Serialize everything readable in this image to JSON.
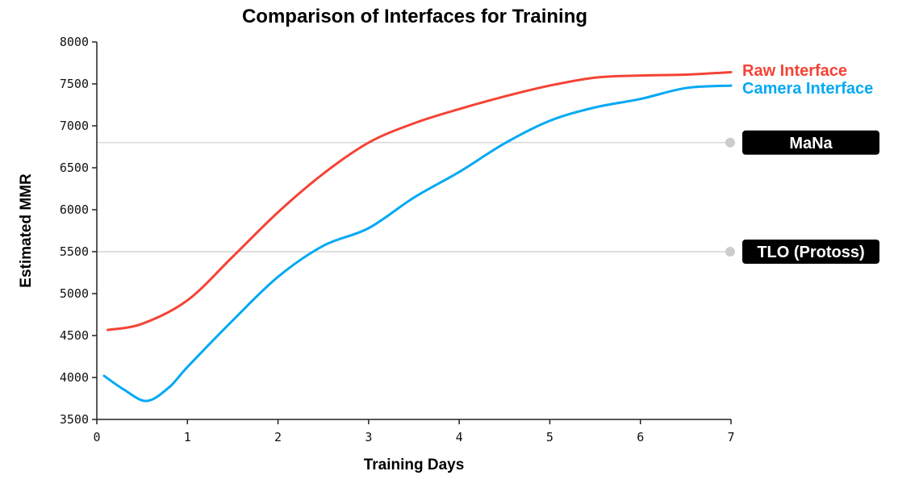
{
  "chart_data": {
    "type": "line",
    "title": "Comparison of Interfaces for Training",
    "xlabel": "Training Days",
    "ylabel": "Estimated MMR",
    "xlim": [
      0,
      7
    ],
    "ylim": [
      3500,
      8000
    ],
    "xticks": [
      "0",
      "1",
      "2",
      "3",
      "4",
      "5",
      "6",
      "7"
    ],
    "yticks": [
      "3500",
      "4000",
      "4500",
      "5000",
      "5500",
      "6000",
      "6500",
      "7000",
      "7500",
      "8000"
    ],
    "grid": false,
    "legend": "right, inline labels at line ends",
    "series": [
      {
        "name": "Raw Interface",
        "color": "#f44336",
        "x": [
          0.12,
          0.5,
          1,
          1.5,
          2,
          2.5,
          3,
          3.5,
          4,
          4.5,
          5,
          5.5,
          6,
          6.5,
          7
        ],
        "y": [
          4567,
          4640,
          4920,
          5440,
          5970,
          6430,
          6800,
          7030,
          7200,
          7350,
          7480,
          7575,
          7600,
          7610,
          7640
        ]
      },
      {
        "name": "Camera Interface",
        "color": "#03a9f4",
        "x": [
          0.08,
          0.3,
          0.55,
          0.8,
          1,
          1.5,
          2,
          2.5,
          3,
          3.5,
          4,
          4.5,
          5,
          5.5,
          6,
          6.5,
          7
        ],
        "y": [
          4020,
          3855,
          3720,
          3885,
          4125,
          4680,
          5200,
          5570,
          5780,
          6145,
          6450,
          6790,
          7060,
          7220,
          7320,
          7450,
          7480
        ]
      }
    ],
    "reference_lines": [
      {
        "label": "MaNa",
        "y": 6800,
        "color": "#cccccc"
      },
      {
        "label": "TLO (Protoss)",
        "y": 5500,
        "color": "#cccccc"
      }
    ]
  }
}
